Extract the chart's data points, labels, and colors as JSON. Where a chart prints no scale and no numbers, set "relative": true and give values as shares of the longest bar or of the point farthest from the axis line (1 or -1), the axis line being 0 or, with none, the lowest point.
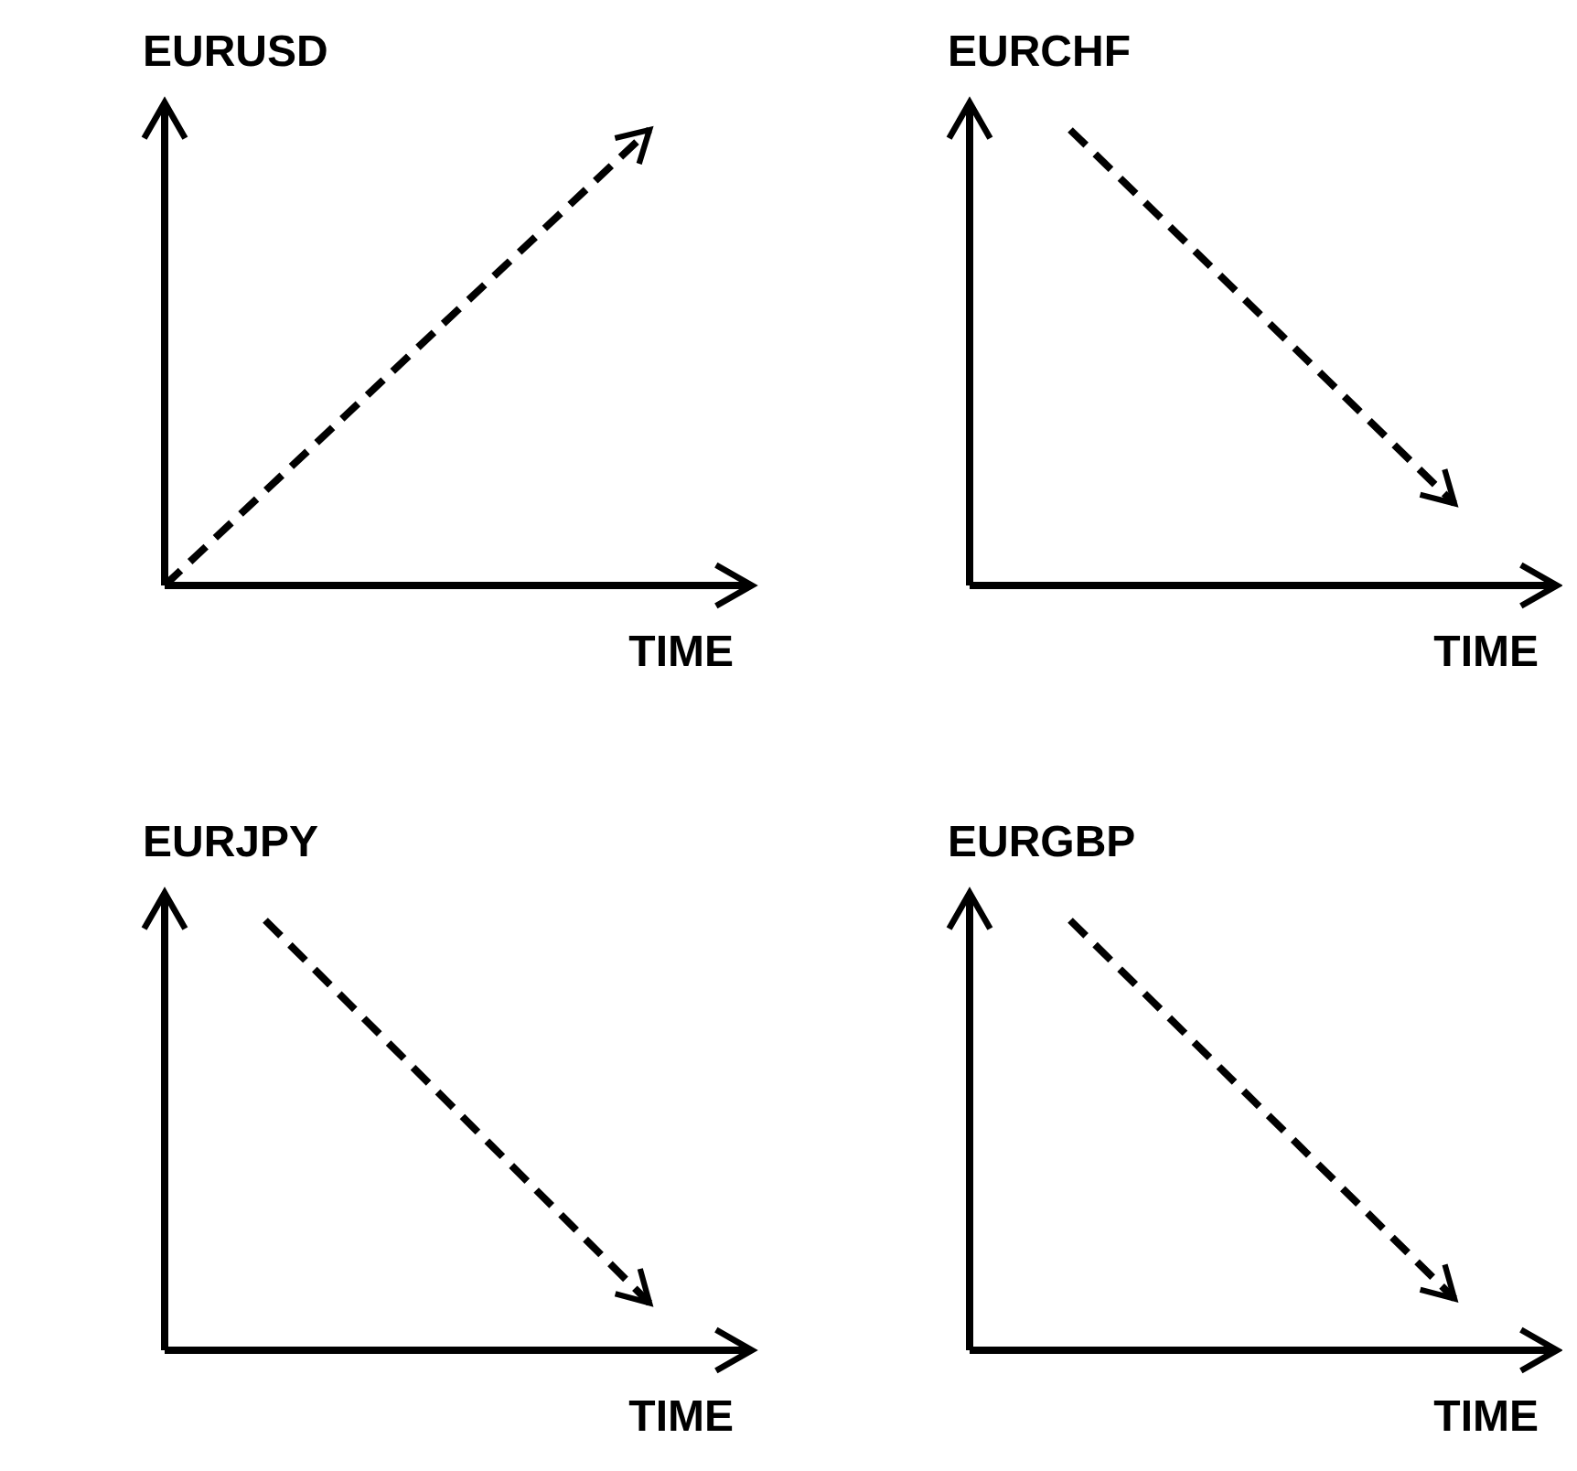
{
  "chart_data": [
    {
      "type": "line",
      "ylabel": "EURUSD",
      "xlabel": "TIME",
      "categories": [
        null,
        null
      ],
      "relative": true,
      "values": [
        0,
        1
      ],
      "color": "#000000",
      "line_style": "dashed",
      "marker": "none"
    },
    {
      "type": "line",
      "ylabel": "EURCHF",
      "xlabel": "TIME",
      "categories": [
        null,
        null
      ],
      "relative": true,
      "values": [
        1,
        0.18
      ],
      "color": "#000000",
      "line_style": "dashed",
      "marker": "none"
    },
    {
      "type": "line",
      "ylabel": "EURJPY",
      "xlabel": "TIME",
      "categories": [
        null,
        null
      ],
      "relative": true,
      "values": [
        1,
        0.11
      ],
      "color": "#000000",
      "line_style": "dashed",
      "marker": "none"
    },
    {
      "type": "line",
      "ylabel": "EURGBP",
      "xlabel": "TIME",
      "categories": [
        null,
        null
      ],
      "relative": true,
      "values": [
        1,
        0.12
      ],
      "color": "#000000",
      "line_style": "dashed",
      "marker": "none"
    }
  ]
}
